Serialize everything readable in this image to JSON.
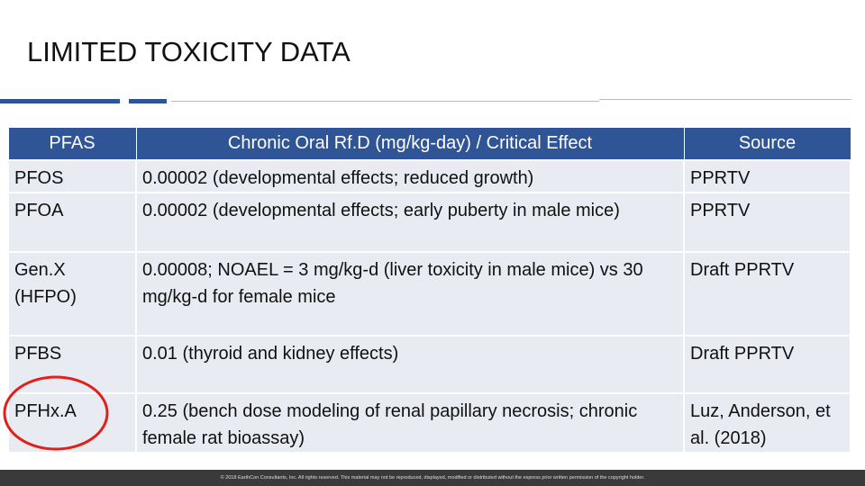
{
  "header": {
    "title": "LIMITED TOXICITY DATA"
  },
  "table": {
    "columns": [
      "PFAS",
      "Chronic Oral Rf.D (mg/kg-day) / Critical Effect",
      "Source"
    ],
    "rows": [
      [
        "PFOS",
        "0.00002 (developmental effects; reduced growth)",
        "PPRTV"
      ],
      [
        "PFOA",
        "0.00002 (developmental effects; early puberty in male mice)",
        "PPRTV"
      ],
      [
        "Gen.X (HFPO)",
        "0.00008; NOAEL = 3 mg/kg-d (liver toxicity in male mice) vs 30 mg/kg-d for female mice",
        "Draft PPRTV"
      ],
      [
        "PFBS",
        "0.01 (thyroid and kidney effects)",
        "Draft PPRTV"
      ],
      [
        "PFHx.A",
        "0.25 (bench dose modeling of renal papillary necrosis; chronic female rat bioassay)",
        "Luz, Anderson, et al. (2018)"
      ]
    ]
  },
  "footer": {
    "text": "© 2018 EarthCon Consultants, Inc. All rights reserved. This material may not be reproduced, displayed, modified or distributed without the express prior written permission of the copyright holder."
  }
}
